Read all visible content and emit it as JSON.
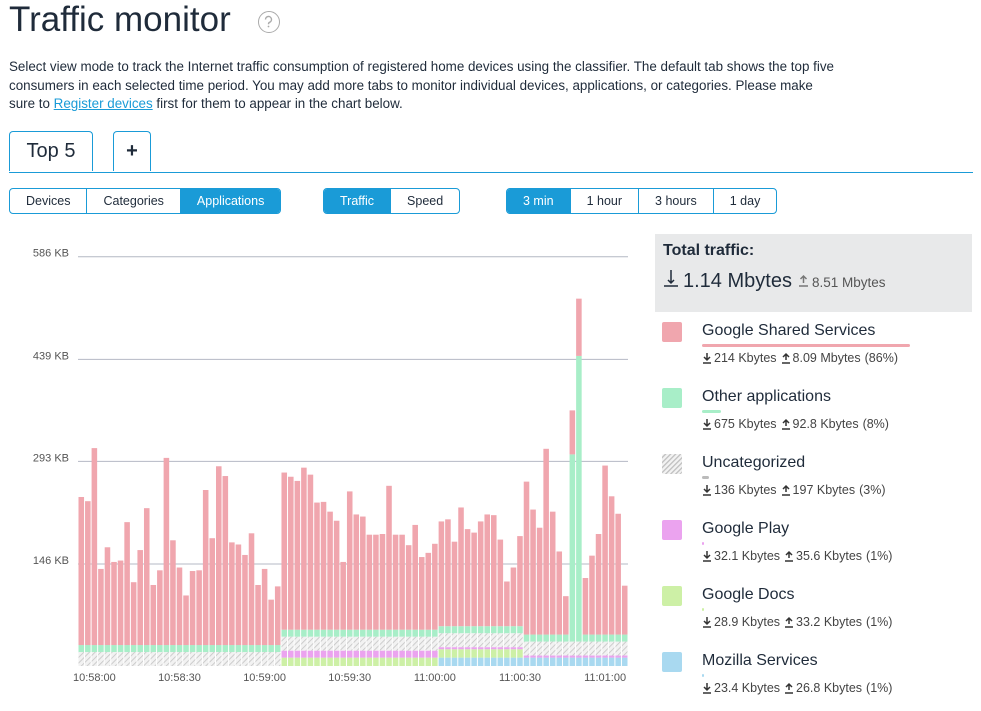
{
  "header": {
    "title": "Traffic monitor"
  },
  "intro": {
    "before": "Select view mode to track the Internet traffic consumption of registered home devices using the classifier. The default tab shows the top five consumers in each selected time period. You may add more tabs to monitor individual devices, applications, or categories. Please make sure to ",
    "link": "Register devices",
    "after": " first for them to appear in the chart below."
  },
  "tabs": [
    "Top 5",
    "+"
  ],
  "view_modes": {
    "options": [
      "Devices",
      "Categories",
      "Applications"
    ],
    "selected": 2
  },
  "metrics": {
    "options": [
      "Traffic",
      "Speed"
    ],
    "selected": 0
  },
  "periods": {
    "options": [
      "3 min",
      "1 hour",
      "3 hours",
      "1 day"
    ],
    "selected": 0
  },
  "total": {
    "title": "Total traffic:",
    "down": "1.14 Mbytes",
    "up": "8.51 Mbytes"
  },
  "chart_data": {
    "type": "bar",
    "stacked": true,
    "grid": true,
    "ylim": [
      0,
      620
    ],
    "yticks": [
      {
        "value": 146,
        "label": "146 KB"
      },
      {
        "value": 293,
        "label": "293 KB"
      },
      {
        "value": 439,
        "label": "439 KB"
      },
      {
        "value": 586,
        "label": "586 KB"
      }
    ],
    "categories": [
      null,
      null,
      "10:58:00",
      null,
      null,
      null,
      null,
      null,
      null,
      null,
      null,
      null,
      null,
      null,
      null,
      "10:58:30",
      null,
      null,
      null,
      null,
      null,
      null,
      null,
      null,
      null,
      null,
      null,
      null,
      "10:59:00",
      null,
      null,
      null,
      null,
      null,
      null,
      null,
      null,
      null,
      null,
      null,
      null,
      "10:59:30",
      null,
      null,
      null,
      null,
      null,
      null,
      null,
      null,
      null,
      null,
      null,
      null,
      "11:00:00",
      null,
      null,
      null,
      null,
      null,
      null,
      null,
      null,
      null,
      null,
      null,
      null,
      "11:00:30",
      null,
      null,
      null,
      null,
      null,
      null,
      null,
      null,
      null,
      null,
      null,
      null,
      "11:01:00",
      null,
      null,
      null
    ],
    "series": [
      {
        "name": "Mozilla Services",
        "color": "#a9d9f0",
        "down": "23.4 Kbytes",
        "up": "26.8 Kbytes",
        "share": 1,
        "share_label": "(1%)",
        "values": [
          0,
          0,
          0,
          0,
          0,
          0,
          0,
          0,
          0,
          0,
          0,
          0,
          0,
          0,
          0,
          0,
          0,
          0,
          0,
          0,
          0,
          0,
          0,
          0,
          0,
          0,
          0,
          0,
          0,
          0,
          0,
          0,
          0,
          0,
          0,
          0,
          0,
          0,
          0,
          0,
          0,
          0,
          0,
          0,
          0,
          0,
          0,
          0,
          0,
          0,
          0,
          0,
          0,
          0,
          0,
          12,
          12,
          12,
          12,
          12,
          12,
          12,
          12,
          12,
          12,
          12,
          12,
          12,
          12,
          12,
          12,
          12,
          12,
          12,
          12,
          12,
          12,
          12,
          12,
          12,
          12,
          12,
          12,
          12
        ]
      },
      {
        "name": "Google Docs",
        "color": "#cdf0a6",
        "down": "28.9 Kbytes",
        "up": "33.2 Kbytes",
        "share": 1,
        "share_label": "(1%)",
        "values": [
          0,
          0,
          0,
          0,
          0,
          0,
          0,
          0,
          0,
          0,
          0,
          0,
          0,
          0,
          0,
          0,
          0,
          0,
          0,
          0,
          0,
          0,
          0,
          0,
          0,
          0,
          0,
          0,
          0,
          0,
          0,
          12,
          12,
          12,
          12,
          12,
          12,
          12,
          12,
          12,
          12,
          12,
          12,
          12,
          12,
          12,
          12,
          12,
          12,
          12,
          12,
          12,
          12,
          12,
          12,
          12,
          12,
          12,
          12,
          12,
          12,
          12,
          12,
          12,
          12,
          12,
          12,
          12,
          0,
          0,
          0,
          0,
          0,
          0,
          0,
          0,
          0,
          0,
          0,
          0,
          0,
          0,
          0,
          0
        ]
      },
      {
        "name": "Google Play",
        "color": "#eba3ef",
        "down": "32.1 Kbytes",
        "up": "35.6 Kbytes",
        "share": 1,
        "share_label": "(1%)",
        "values": [
          0,
          0,
          0,
          0,
          0,
          0,
          0,
          0,
          0,
          0,
          0,
          0,
          0,
          0,
          0,
          0,
          0,
          0,
          0,
          0,
          0,
          0,
          0,
          0,
          0,
          0,
          0,
          0,
          0,
          0,
          0,
          10,
          10,
          10,
          10,
          10,
          10,
          10,
          10,
          10,
          10,
          10,
          10,
          10,
          10,
          10,
          10,
          10,
          10,
          10,
          10,
          10,
          10,
          10,
          10,
          3,
          3,
          3,
          3,
          3,
          3,
          3,
          3,
          3,
          3,
          3,
          3,
          3,
          3,
          3,
          3,
          3,
          3,
          3,
          3,
          3,
          3,
          3,
          3,
          3,
          3,
          3,
          3,
          3
        ]
      },
      {
        "name": "Uncategorized",
        "color": "#d4d4d4",
        "hatched": true,
        "down": "136 Kbytes",
        "up": "197 Kbytes",
        "share": 3,
        "share_label": "(3%)",
        "values": [
          20,
          20,
          20,
          20,
          20,
          20,
          20,
          20,
          20,
          20,
          20,
          20,
          20,
          20,
          20,
          20,
          20,
          20,
          20,
          20,
          20,
          20,
          20,
          20,
          20,
          20,
          20,
          20,
          20,
          20,
          20,
          20,
          20,
          20,
          20,
          20,
          20,
          20,
          20,
          20,
          20,
          20,
          20,
          20,
          20,
          20,
          20,
          20,
          20,
          20,
          20,
          20,
          20,
          20,
          20,
          20,
          20,
          20,
          20,
          20,
          20,
          20,
          20,
          20,
          20,
          20,
          20,
          20,
          20,
          20,
          20,
          20,
          20,
          20,
          20,
          20,
          20,
          20,
          20,
          20,
          20,
          20,
          20,
          20
        ]
      },
      {
        "name": "Other applications",
        "color": "#a8eec8",
        "down": "675 Kbytes",
        "up": "92.8 Kbytes",
        "share": 8,
        "share_label": "(8%)",
        "values": [
          10,
          10,
          10,
          10,
          10,
          10,
          10,
          10,
          10,
          10,
          10,
          10,
          10,
          10,
          10,
          10,
          10,
          10,
          10,
          10,
          10,
          10,
          10,
          10,
          10,
          10,
          10,
          10,
          10,
          10,
          10,
          10,
          10,
          10,
          10,
          10,
          10,
          10,
          10,
          10,
          10,
          10,
          10,
          10,
          10,
          10,
          10,
          10,
          10,
          10,
          10,
          10,
          10,
          10,
          10,
          10,
          10,
          10,
          10,
          10,
          10,
          10,
          10,
          10,
          10,
          10,
          10,
          10,
          10,
          10,
          10,
          10,
          10,
          10,
          10,
          268,
          409,
          10,
          10,
          10,
          10,
          10,
          10,
          10
        ]
      },
      {
        "name": "Google Shared Services",
        "color": "#f0a6ae",
        "down": "214 Kbytes",
        "up": "8.09 Mbytes",
        "share": 86,
        "share_label": "(86%)",
        "values": [
          212,
          206,
          282,
          109,
          140,
          119,
          121,
          176,
          90,
          136,
          196,
          86,
          107,
          268,
          150,
          111,
          71,
          106,
          107,
          222,
          153,
          256,
          242,
          147,
          144,
          129,
          160,
          86,
          109,
          65,
          84,
          225,
          219,
          213,
          232,
          222,
          182,
          183,
          169,
          156,
          97,
          198,
          165,
          162,
          136,
          136,
          137,
          206,
          136,
          136,
          121,
          150,
          104,
          110,
          123,
          150,
          153,
          121,
          170,
          139,
          134,
          150,
          160,
          159,
          124,
          64,
          84,
          129,
          219,
          179,
          153,
          266,
          176,
          119,
          55,
          63,
          82,
          81,
          113,
          144,
          242,
          198,
          173,
          70
        ]
      }
    ]
  }
}
